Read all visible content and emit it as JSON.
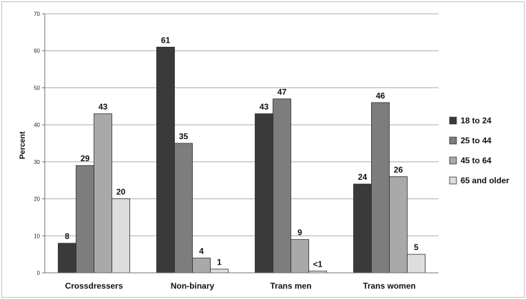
{
  "chart_data": {
    "type": "bar",
    "title": "",
    "xlabel": "",
    "ylabel": "Percent",
    "ylim": [
      0,
      70
    ],
    "yticks": [
      0,
      10,
      20,
      30,
      40,
      50,
      60,
      70
    ],
    "grid": true,
    "legend_position": "right",
    "categories": [
      "Crossdressers",
      "Non-binary",
      "Trans men",
      "Trans women"
    ],
    "series": [
      {
        "name": "18 to 24",
        "color": "#3a3a3a",
        "values": [
          8,
          61,
          43,
          24
        ],
        "labels": [
          "8",
          "61",
          "43",
          "24"
        ]
      },
      {
        "name": "25 to 44",
        "color": "#7d7d7d",
        "values": [
          29,
          35,
          47,
          46
        ],
        "labels": [
          "29",
          "35",
          "47",
          "46"
        ]
      },
      {
        "name": "45 to 64",
        "color": "#a9a9a9",
        "values": [
          43,
          4,
          9,
          26
        ],
        "labels": [
          "43",
          "4",
          "9",
          "26"
        ]
      },
      {
        "name": "65 and older",
        "color": "#dddddd",
        "values": [
          20,
          1,
          0.5,
          5
        ],
        "labels": [
          "20",
          "1",
          "<1",
          "5"
        ]
      }
    ]
  }
}
